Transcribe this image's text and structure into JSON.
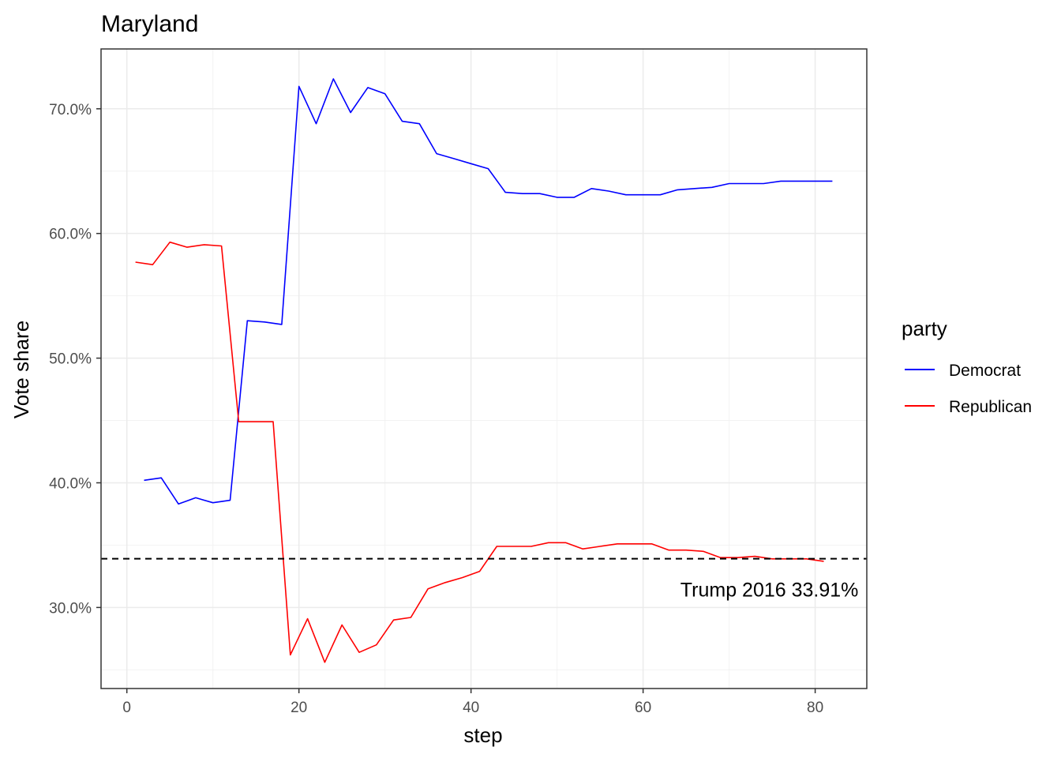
{
  "chart_data": {
    "type": "line",
    "title": "Maryland",
    "xlabel": "step",
    "ylabel": "Vote share",
    "xlim": [
      -3,
      86
    ],
    "ylim": [
      23.5,
      74.8
    ],
    "x_ticks": [
      0,
      20,
      40,
      60,
      80
    ],
    "x_tick_labels": [
      "0",
      "20",
      "40",
      "60",
      "80"
    ],
    "y_ticks": [
      30,
      40,
      50,
      60,
      70
    ],
    "y_tick_labels": [
      "30.0%",
      "40.0%",
      "50.0%",
      "60.0%",
      "70.0%"
    ],
    "grid": true,
    "legend": {
      "title": "party",
      "position": "right",
      "entries": [
        {
          "label": "Democrat",
          "color": "#0000ff"
        },
        {
          "label": "Republican",
          "color": "#ff0000"
        }
      ]
    },
    "series": [
      {
        "name": "Democrat",
        "color": "#0000ff",
        "points": [
          [
            2,
            40.2
          ],
          [
            4,
            40.4
          ],
          [
            6,
            38.3
          ],
          [
            8,
            38.8
          ],
          [
            10,
            38.4
          ],
          [
            12,
            38.6
          ],
          [
            14,
            53.0
          ],
          [
            16,
            52.9
          ],
          [
            18,
            52.7
          ],
          [
            20,
            71.8
          ],
          [
            22,
            68.8
          ],
          [
            24,
            72.4
          ],
          [
            26,
            69.7
          ],
          [
            28,
            71.7
          ],
          [
            30,
            71.2
          ],
          [
            32,
            69.0
          ],
          [
            34,
            68.8
          ],
          [
            36,
            66.4
          ],
          [
            38,
            66.0
          ],
          [
            40,
            65.6
          ],
          [
            42,
            65.2
          ],
          [
            44,
            63.3
          ],
          [
            46,
            63.2
          ],
          [
            48,
            63.2
          ],
          [
            50,
            62.9
          ],
          [
            52,
            62.9
          ],
          [
            54,
            63.6
          ],
          [
            56,
            63.4
          ],
          [
            58,
            63.1
          ],
          [
            60,
            63.1
          ],
          [
            62,
            63.1
          ],
          [
            64,
            63.5
          ],
          [
            66,
            63.6
          ],
          [
            68,
            63.7
          ],
          [
            70,
            64.0
          ],
          [
            72,
            64.0
          ],
          [
            74,
            64.0
          ],
          [
            76,
            64.2
          ],
          [
            78,
            64.2
          ],
          [
            80,
            64.2
          ],
          [
            82,
            64.2
          ]
        ]
      },
      {
        "name": "Republican",
        "color": "#ff0000",
        "points": [
          [
            1,
            57.7
          ],
          [
            3,
            57.5
          ],
          [
            5,
            59.3
          ],
          [
            7,
            58.9
          ],
          [
            9,
            59.1
          ],
          [
            11,
            59.0
          ],
          [
            13,
            44.9
          ],
          [
            15,
            44.9
          ],
          [
            17,
            44.9
          ],
          [
            19,
            26.2
          ],
          [
            21,
            29.1
          ],
          [
            23,
            25.6
          ],
          [
            25,
            28.6
          ],
          [
            27,
            26.4
          ],
          [
            29,
            27.0
          ],
          [
            31,
            29.0
          ],
          [
            33,
            29.2
          ],
          [
            35,
            31.5
          ],
          [
            37,
            32.0
          ],
          [
            39,
            32.4
          ],
          [
            41,
            32.9
          ],
          [
            43,
            34.9
          ],
          [
            45,
            34.9
          ],
          [
            47,
            34.9
          ],
          [
            49,
            35.2
          ],
          [
            51,
            35.2
          ],
          [
            53,
            34.7
          ],
          [
            55,
            34.9
          ],
          [
            57,
            35.1
          ],
          [
            59,
            35.1
          ],
          [
            61,
            35.1
          ],
          [
            63,
            34.6
          ],
          [
            65,
            34.6
          ],
          [
            67,
            34.5
          ],
          [
            69,
            34.0
          ],
          [
            71,
            34.0
          ],
          [
            73,
            34.1
          ],
          [
            75,
            33.9
          ],
          [
            77,
            33.9
          ],
          [
            79,
            33.9
          ],
          [
            81,
            33.7
          ]
        ]
      }
    ],
    "reference_line": {
      "y": 33.91,
      "style": "dashed",
      "color": "#000000"
    },
    "annotation": {
      "text": "Trump 2016 33.91%",
      "x": 72,
      "y": 31.4
    }
  }
}
